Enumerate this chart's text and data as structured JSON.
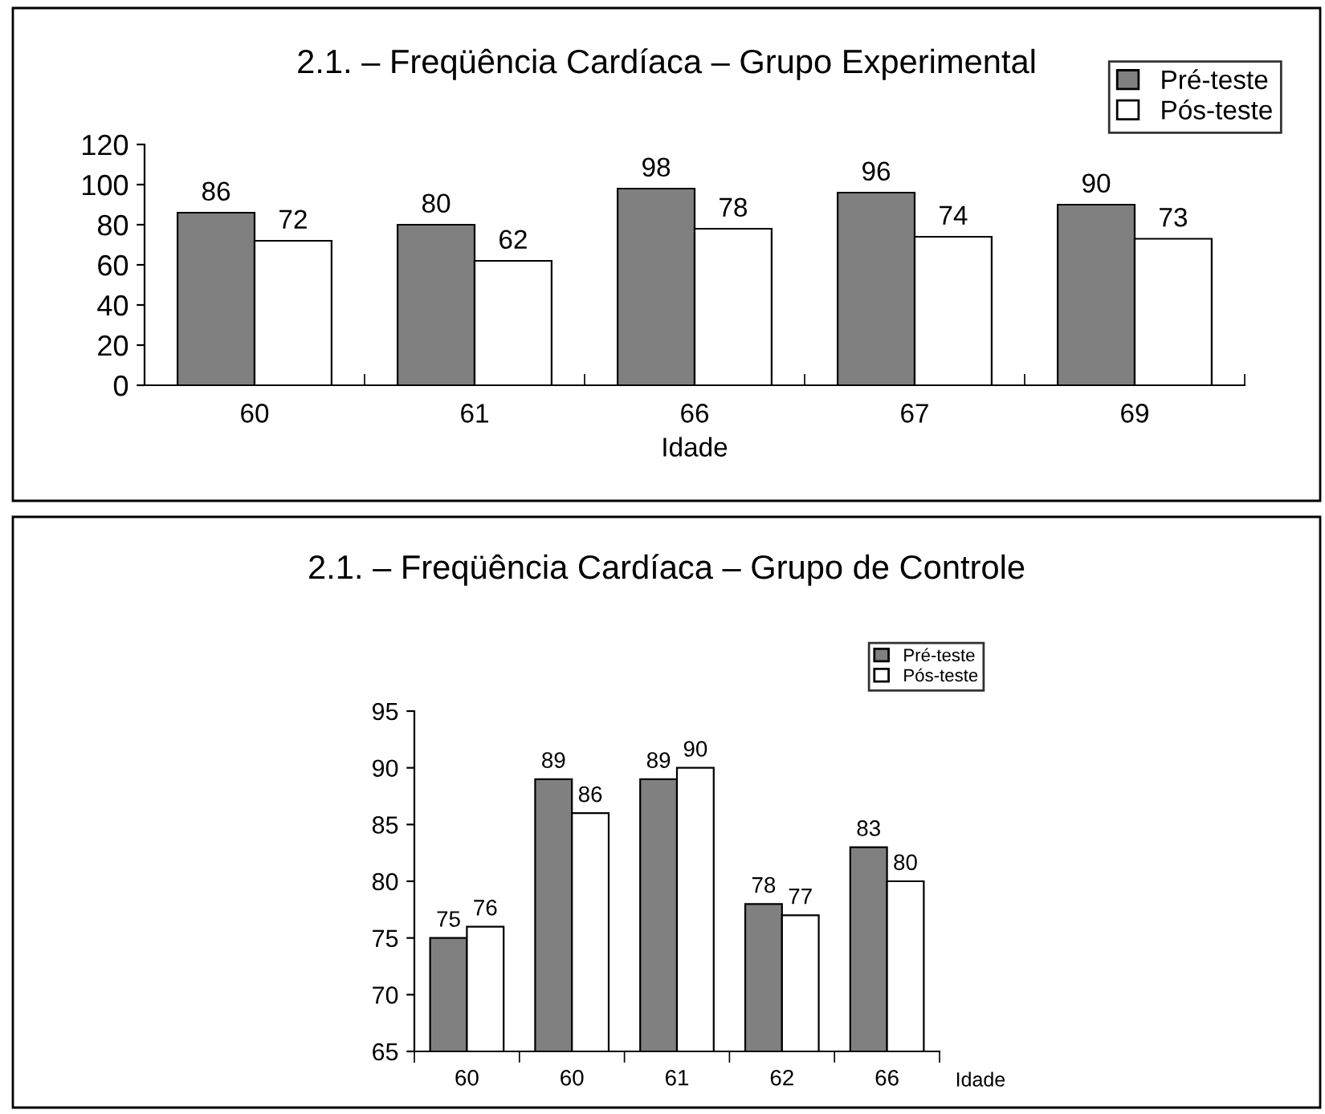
{
  "chart_data": [
    {
      "type": "bar",
      "title": "2.1. – Freqüência Cardíaca – Grupo Experimental",
      "xlabel": "Idade",
      "categories": [
        "60",
        "61",
        "66",
        "67",
        "69"
      ],
      "series": [
        {
          "name": "Pré-teste",
          "color": "#808080",
          "values": [
            86,
            80,
            98,
            96,
            90
          ]
        },
        {
          "name": "Pós-teste",
          "color": "#ffffff",
          "values": [
            72,
            62,
            78,
            74,
            73
          ]
        }
      ],
      "ylim": [
        0,
        120
      ],
      "yticks": [
        0,
        20,
        40,
        60,
        80,
        100,
        120
      ],
      "data_labels": true,
      "legend": "top right",
      "grid": false
    },
    {
      "type": "bar",
      "title": "2.1. – Freqüência Cardíaca – Grupo de Controle",
      "xlabel": "Idade",
      "categories": [
        "60",
        "60",
        "61",
        "62",
        "66"
      ],
      "series": [
        {
          "name": "Pré-teste",
          "color": "#808080",
          "values": [
            75,
            89,
            89,
            78,
            83
          ]
        },
        {
          "name": "Pós-teste",
          "color": "#ffffff",
          "values": [
            76,
            86,
            90,
            77,
            80
          ]
        }
      ],
      "ylim": [
        65,
        95
      ],
      "yticks": [
        65,
        70,
        75,
        80,
        85,
        90,
        95
      ],
      "data_labels": true,
      "legend": "top right",
      "grid": false
    }
  ]
}
